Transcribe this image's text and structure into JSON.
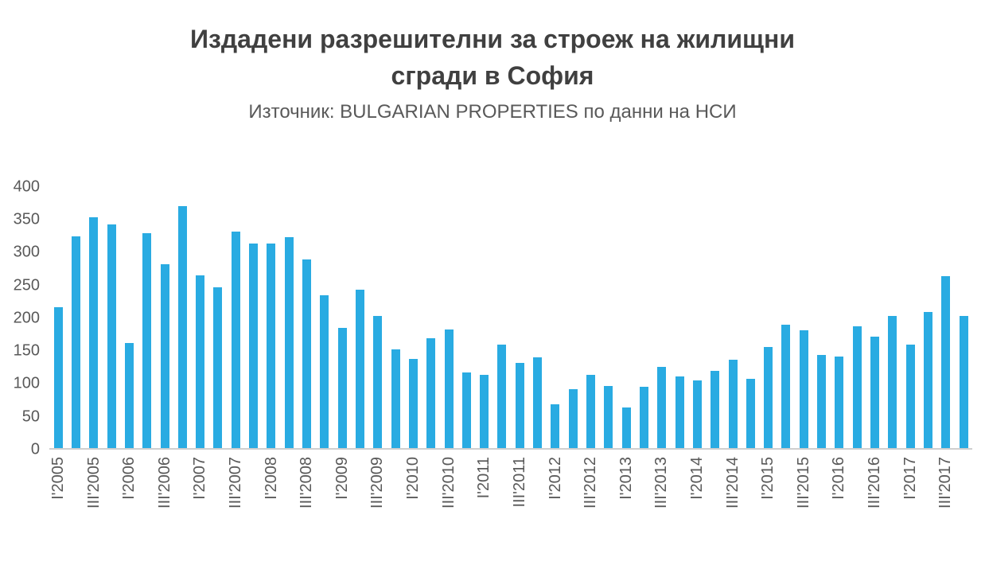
{
  "chart_data": {
    "type": "bar",
    "title": "Издадени разрешителни за строеж на жилищни\nсгради в София",
    "subtitle": "Източник: BULGARIAN PROPERTIES по данни на НСИ",
    "xlabel": "",
    "ylabel": "",
    "ylim": [
      0,
      400
    ],
    "yticks": [
      0,
      50,
      100,
      150,
      200,
      250,
      300,
      350,
      400
    ],
    "grid": false,
    "legend": "none",
    "label_every": 2,
    "bar_color": "#29ABE2",
    "axis_color": "#cfcfcf",
    "text_color": "#595959",
    "title_color": "#404040",
    "categories": [
      "I'2005",
      "II'2005",
      "III'2005",
      "IV'2005",
      "I'2006",
      "II'2006",
      "III'2006",
      "IV'2006",
      "I'2007",
      "II'2007",
      "III'2007",
      "IV'2007",
      "I'2008",
      "II'2008",
      "III'2008",
      "IV'2008",
      "I'2009",
      "II'2009",
      "III'2009",
      "IV'2009",
      "I'2010",
      "II'2010",
      "III'2010",
      "IV'2010",
      "I'2011",
      "II'2011",
      "III'2011",
      "IV'2011",
      "I'2012",
      "II'2012",
      "III'2012",
      "IV'2012",
      "I'2013",
      "II'2013",
      "III'2013",
      "IV'2013",
      "I'2014",
      "II'2014",
      "III'2014",
      "IV'2014",
      "I'2015",
      "II'2015",
      "III'2015",
      "IV'2015",
      "I'2016",
      "II'2016",
      "III'2016",
      "IV'2016",
      "I'2017",
      "II'2017",
      "III'2017",
      "IV'2017"
    ],
    "values": [
      215,
      322,
      352,
      340,
      160,
      327,
      280,
      368,
      263,
      245,
      330,
      312,
      311,
      321,
      287,
      233,
      183,
      241,
      201,
      150,
      136,
      167,
      180,
      115,
      112,
      157,
      130,
      138,
      67,
      90,
      112,
      95,
      62,
      93,
      124,
      109,
      103,
      118,
      134,
      105,
      154,
      188,
      179,
      142,
      140,
      186,
      170,
      201,
      157,
      207,
      262,
      201
    ]
  }
}
